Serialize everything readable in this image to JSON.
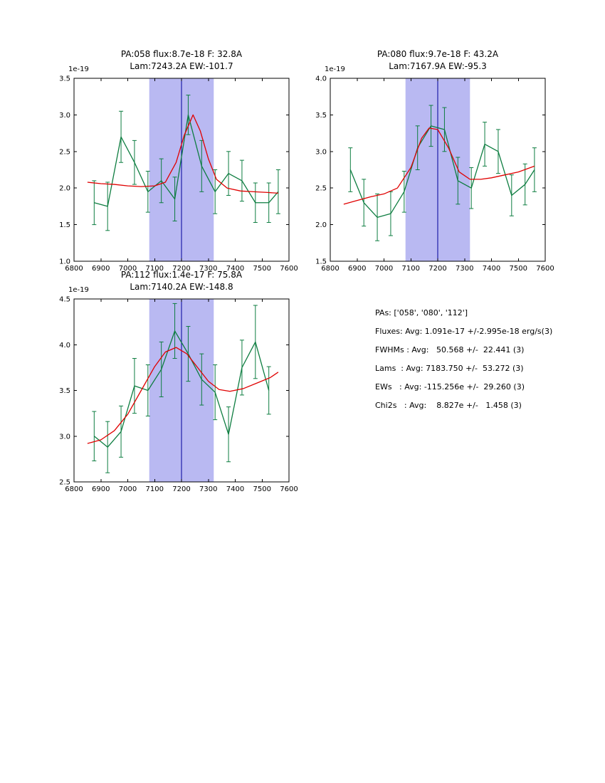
{
  "stats_panel": {
    "lines": [
      "PAs: ['058', '080', '112']",
      "Fluxes: Avg: 1.091e-17 +/-2.995e-18 erg/s(3)",
      "FWHMs : Avg:   50.568 +/-  22.441 (3)",
      "Lams  : Avg: 7183.750 +/-  53.272 (3)",
      "EWs   : Avg: -115.256e +/-  29.260 (3)",
      "Chi2s   : Avg:    8.827e +/-   1.458 (3)"
    ]
  },
  "chart_data": [
    {
      "type": "line",
      "title1": "PA:058 flux:8.7e-18 F: 32.8A",
      "title2": "Lam:7243.2A EW:-101.7",
      "offset_label": "1e-19",
      "xlabel": "",
      "ylabel": "",
      "xlim": [
        6800,
        7600
      ],
      "ylim": [
        1.0,
        3.5
      ],
      "xtick_labels": [
        "6800",
        "6900",
        "7000",
        "7100",
        "7200",
        "7300",
        "7400",
        "7500",
        "7600"
      ],
      "ytick_labels": [
        "1.0",
        "1.5",
        "2.0",
        "2.5",
        "3.0",
        "3.5"
      ],
      "band": [
        7080,
        7320
      ],
      "band_color": "#b9b9f2",
      "vline": 7200,
      "vline_color": "#000099",
      "series": [
        {
          "name": "spectrum-data",
          "color": "#0d7d40",
          "x": [
            6875,
            6925,
            6975,
            7025,
            7075,
            7125,
            7175,
            7225,
            7275,
            7325,
            7375,
            7425,
            7475,
            7525,
            7560
          ],
          "y": [
            1.8,
            1.75,
            2.7,
            2.35,
            1.95,
            2.1,
            1.85,
            3.0,
            2.3,
            1.95,
            2.2,
            2.1,
            1.8,
            1.8,
            1.95
          ],
          "yerr": [
            0.3,
            0.33,
            0.35,
            0.3,
            0.28,
            0.3,
            0.3,
            0.27,
            0.35,
            0.3,
            0.3,
            0.28,
            0.27,
            0.27,
            0.3
          ]
        },
        {
          "name": "gaussian-fit",
          "color": "#e00000",
          "x": [
            6850,
            6900,
            6950,
            7000,
            7050,
            7100,
            7140,
            7180,
            7210,
            7243,
            7270,
            7300,
            7330,
            7370,
            7420,
            7470,
            7520,
            7560
          ],
          "y": [
            2.08,
            2.06,
            2.05,
            2.03,
            2.02,
            2.03,
            2.08,
            2.35,
            2.72,
            3.0,
            2.78,
            2.4,
            2.12,
            2.0,
            1.96,
            1.95,
            1.94,
            1.93
          ]
        }
      ]
    },
    {
      "type": "line",
      "title1": "PA:080 flux:9.7e-18 F: 43.2A",
      "title2": "Lam:7167.9A EW:-95.3",
      "offset_label": "1e-19",
      "xlabel": "",
      "ylabel": "",
      "xlim": [
        6800,
        7600
      ],
      "ylim": [
        1.5,
        4.0
      ],
      "xtick_labels": [
        "6800",
        "6900",
        "7000",
        "7100",
        "7200",
        "7300",
        "7400",
        "7500",
        "7600"
      ],
      "ytick_labels": [
        "1.5",
        "2.0",
        "2.5",
        "3.0",
        "3.5",
        "4.0"
      ],
      "band": [
        7080,
        7320
      ],
      "band_color": "#b9b9f2",
      "vline": 7200,
      "vline_color": "#000099",
      "series": [
        {
          "name": "spectrum-data",
          "color": "#0d7d40",
          "x": [
            6875,
            6925,
            6975,
            7025,
            7075,
            7125,
            7175,
            7225,
            7275,
            7325,
            7375,
            7425,
            7475,
            7525,
            7560
          ],
          "y": [
            2.75,
            2.3,
            2.1,
            2.15,
            2.45,
            3.05,
            3.35,
            3.3,
            2.6,
            2.5,
            3.1,
            3.0,
            2.4,
            2.55,
            2.75
          ],
          "yerr": [
            0.3,
            0.32,
            0.32,
            0.3,
            0.28,
            0.3,
            0.28,
            0.3,
            0.32,
            0.28,
            0.3,
            0.3,
            0.28,
            0.28,
            0.3
          ]
        },
        {
          "name": "gaussian-fit",
          "color": "#e00000",
          "x": [
            6850,
            6900,
            6950,
            7000,
            7050,
            7100,
            7140,
            7168,
            7200,
            7240,
            7280,
            7320,
            7360,
            7400,
            7450,
            7500,
            7560
          ],
          "y": [
            2.28,
            2.33,
            2.38,
            2.42,
            2.5,
            2.78,
            3.18,
            3.32,
            3.3,
            3.05,
            2.72,
            2.62,
            2.62,
            2.64,
            2.68,
            2.72,
            2.8
          ]
        }
      ]
    },
    {
      "type": "line",
      "title1": "PA:112 flux:1.4e-17 F: 75.8A",
      "title2": "Lam:7140.2A EW:-148.8",
      "offset_label": "1e-19",
      "xlabel": "",
      "ylabel": "",
      "xlim": [
        6800,
        7600
      ],
      "ylim": [
        2.5,
        4.5
      ],
      "xtick_labels": [
        "6800",
        "6900",
        "7000",
        "7100",
        "7200",
        "7300",
        "7400",
        "7500",
        "7600"
      ],
      "ytick_labels": [
        "2.5",
        "3.0",
        "3.5",
        "4.0",
        "4.5"
      ],
      "band": [
        7080,
        7320
      ],
      "band_color": "#b9b9f2",
      "vline": 7200,
      "vline_color": "#000099",
      "series": [
        {
          "name": "spectrum-data",
          "color": "#0d7d40",
          "x": [
            6875,
            6925,
            6975,
            7025,
            7075,
            7125,
            7175,
            7225,
            7275,
            7325,
            7375,
            7425,
            7475,
            7525
          ],
          "y": [
            3.0,
            2.88,
            3.05,
            3.55,
            3.5,
            3.73,
            4.15,
            3.9,
            3.62,
            3.48,
            3.02,
            3.75,
            4.03,
            3.5
          ],
          "yerr": [
            0.27,
            0.28,
            0.28,
            0.3,
            0.28,
            0.3,
            0.3,
            0.3,
            0.28,
            0.3,
            0.3,
            0.3,
            0.4,
            0.26
          ]
        },
        {
          "name": "gaussian-fit",
          "color": "#e00000",
          "x": [
            6850,
            6900,
            6950,
            7000,
            7050,
            7100,
            7140,
            7180,
            7220,
            7260,
            7300,
            7340,
            7380,
            7430,
            7480,
            7530,
            7560
          ],
          "y": [
            2.92,
            2.96,
            3.06,
            3.24,
            3.5,
            3.76,
            3.92,
            3.97,
            3.9,
            3.75,
            3.6,
            3.51,
            3.49,
            3.52,
            3.58,
            3.64,
            3.7
          ]
        }
      ]
    }
  ]
}
